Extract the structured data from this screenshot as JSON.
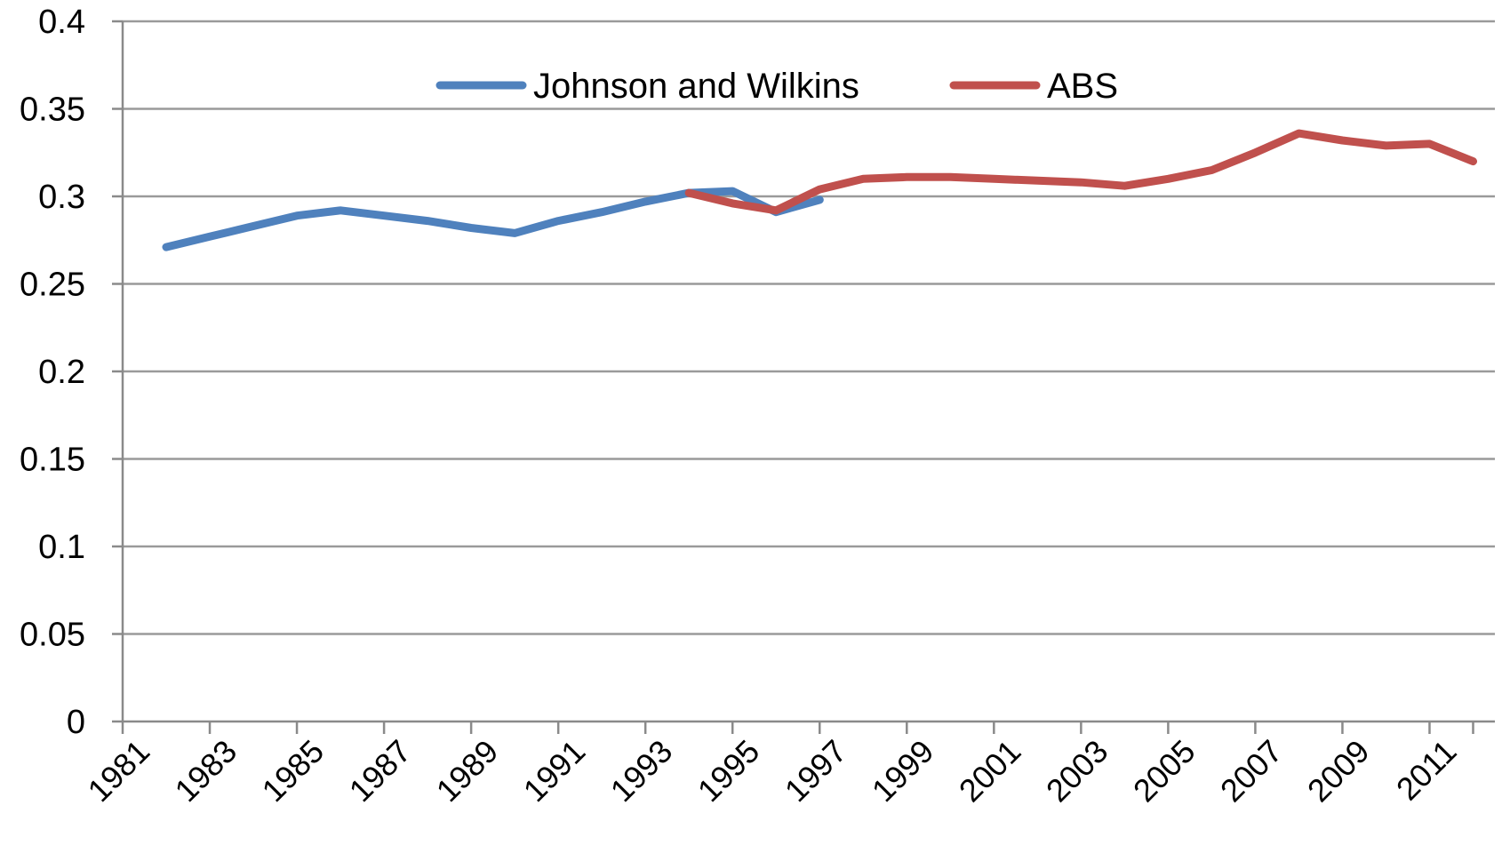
{
  "chart_data": {
    "type": "line",
    "title": "",
    "xlabel": "",
    "ylabel": "",
    "ylim": [
      0,
      0.4
    ],
    "yticks": [
      "0",
      "0.05",
      "0.1",
      "0.15",
      "0.2",
      "0.25",
      "0.3",
      "0.35",
      "0.4"
    ],
    "xlim": [
      1980.5,
      2012
    ],
    "xticks": [
      "1981",
      "1983",
      "1985",
      "1987",
      "1989",
      "1991",
      "1993",
      "1995",
      "1997",
      "1999",
      "2001",
      "2003",
      "2005",
      "2007",
      "2009",
      "2011"
    ],
    "grid": "horizontal",
    "legend_position": "top-center",
    "series": [
      {
        "name": "Johnson and Wilkins",
        "color": "#4f81bd",
        "points": [
          [
            1981.5,
            0.271
          ],
          [
            1982.5,
            0.277
          ],
          [
            1983.5,
            0.283
          ],
          [
            1984.5,
            0.289
          ],
          [
            1985.5,
            0.292
          ],
          [
            1986.5,
            0.289
          ],
          [
            1987.5,
            0.286
          ],
          [
            1988.5,
            0.282
          ],
          [
            1989.5,
            0.279
          ],
          [
            1990.5,
            0.286
          ],
          [
            1991.5,
            0.291
          ],
          [
            1992.5,
            0.297
          ],
          [
            1993.5,
            0.302
          ],
          [
            1994.5,
            0.303
          ],
          [
            1995.5,
            0.291
          ],
          [
            1996.5,
            0.298
          ]
        ]
      },
      {
        "name": "ABS",
        "color": "#c0504d",
        "points": [
          [
            1993.5,
            0.302
          ],
          [
            1994.5,
            0.296
          ],
          [
            1995.5,
            0.292
          ],
          [
            1996.5,
            0.304
          ],
          [
            1997.5,
            0.31
          ],
          [
            1998.5,
            0.311
          ],
          [
            1999.5,
            0.311
          ],
          [
            2000.5,
            0.31
          ],
          [
            2001.5,
            0.309
          ],
          [
            2002.5,
            0.308
          ],
          [
            2003.5,
            0.306
          ],
          [
            2004.5,
            0.31
          ],
          [
            2005.5,
            0.315
          ],
          [
            2006.5,
            0.325
          ],
          [
            2007.5,
            0.336
          ],
          [
            2008.5,
            0.332
          ],
          [
            2009.5,
            0.329
          ],
          [
            2010.5,
            0.33
          ],
          [
            2011.5,
            0.32
          ]
        ]
      }
    ]
  }
}
